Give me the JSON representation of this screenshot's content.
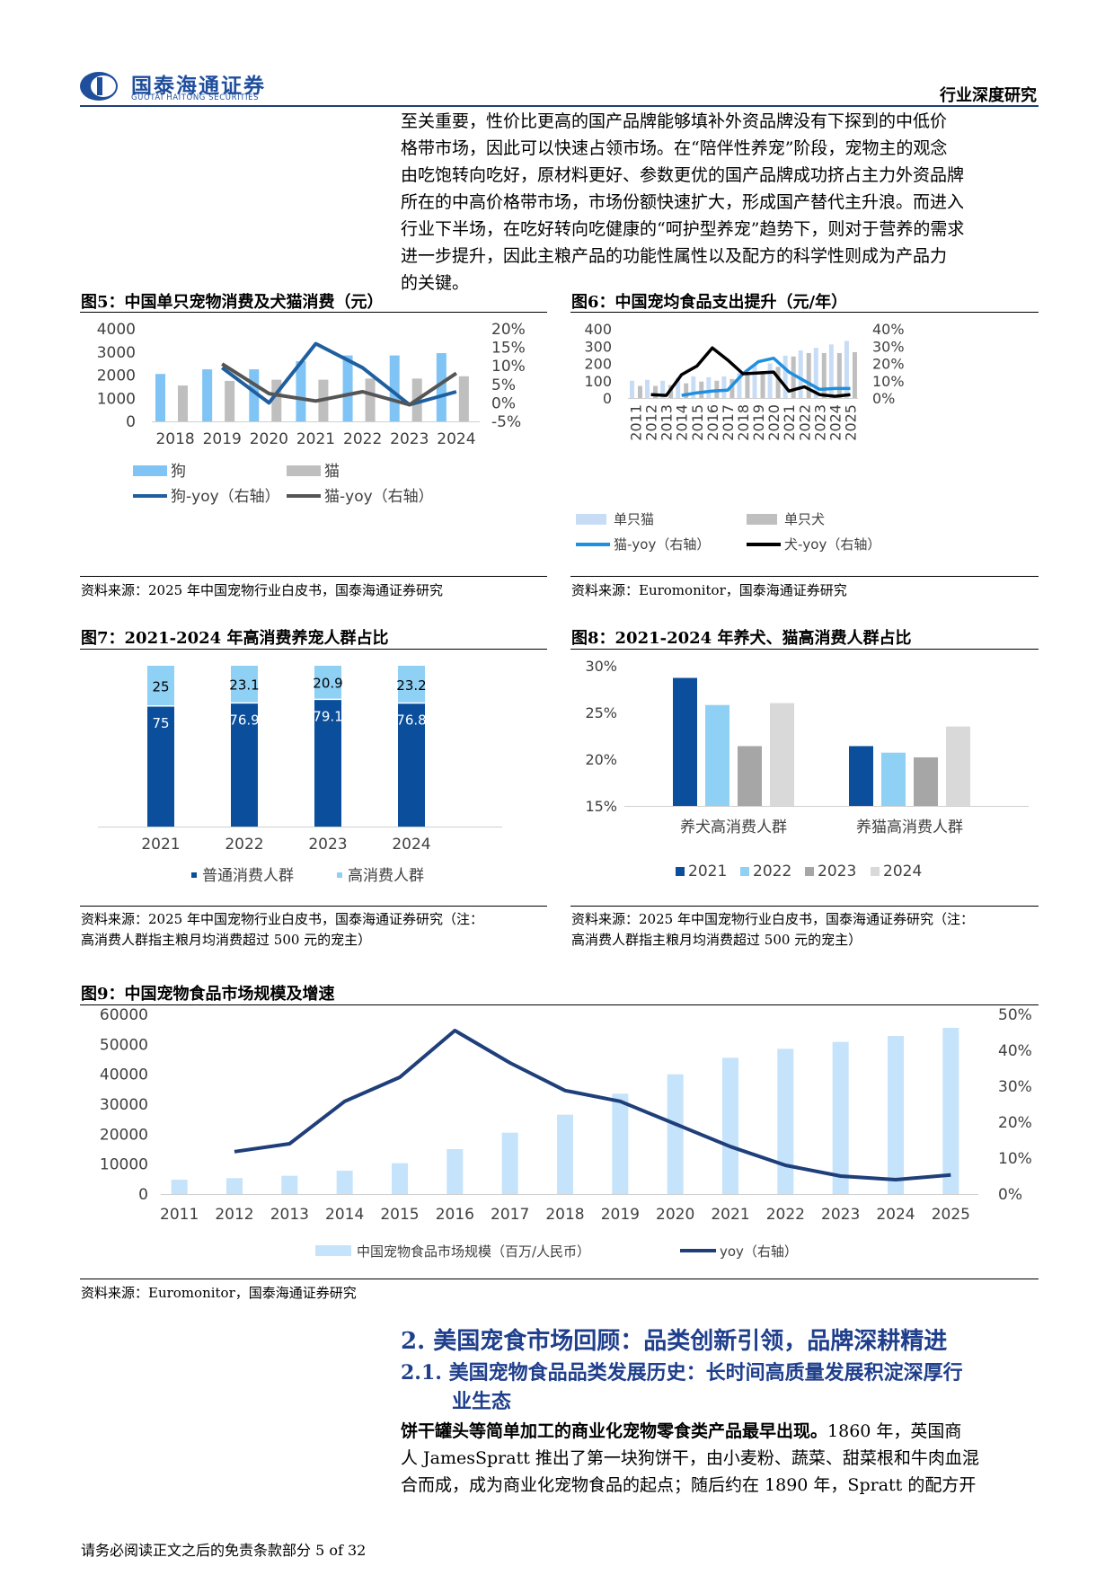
{
  "header": {
    "logo_cn": "国泰海通证券",
    "logo_en": "GUOTAI HAITONG SECURITIES",
    "right": "行业深度研究"
  },
  "intro_lines": [
    "至关重要，性价比更高的国产品牌能够填补外资品牌没有下探到的中低价",
    "格带市场，因此可以快速占领市场。在“陪伴性养宠”阶段，宠物主的观念",
    "由吃饱转向吃好，原材料更好、参数更优的国产品牌成功挤占主力外资品牌",
    "所在的中高价格带市场，市场份额快速扩大，形成国产替代主升浪。而进入",
    "行业下半场，在吃好转向吃健康的“呵护型养宠”趋势下，则对于营养的需求",
    "进一步提升，因此主粮产品的功能性属性以及配方的科学性则成为产品力",
    "的关键。"
  ],
  "figures": {
    "fig5": {
      "title": "图5：中国单只宠物消费及犬猫消费（元）",
      "source": "资料来源：2025 年中国宠物行业白皮书，国泰海通证券研究"
    },
    "fig6": {
      "title": "图6：中国宠均食品支出提升（元/年）",
      "source": "资料来源：Euromonitor，国泰海通证券研究"
    },
    "fig7": {
      "title": "图7：2021-2024 年高消费养宠人群占比",
      "source_line1": "资料来源：2025 年中国宠物行业白皮书，国泰海通证券研究（注：",
      "source_line2": "高消费人群指主粮月均消费超过 500 元的宠主）"
    },
    "fig8": {
      "title": "图8：2021-2024 年养犬、猫高消费人群占比",
      "source_line1": "资料来源：2025 年中国宠物行业白皮书，国泰海通证券研究（注：",
      "source_line2": "高消费人群指主粮月均消费超过 500 元的宠主）"
    },
    "fig9": {
      "title": "图9：中国宠物食品市场规模及增速",
      "source": "资料来源：Euromonitor，国泰海通证券研究"
    }
  },
  "chart_data": [
    {
      "id": "fig5",
      "type": "bar",
      "categories": [
        "2018",
        "2019",
        "2020",
        "2021",
        "2022",
        "2023",
        "2024"
      ],
      "series": [
        {
          "name": "狗",
          "kind": "bar",
          "axis": "left",
          "color": "#7fc4f5",
          "values": [
            2050,
            2250,
            2250,
            2600,
            2850,
            2850,
            2950
          ]
        },
        {
          "name": "猫",
          "kind": "bar",
          "axis": "left",
          "color": "#bfbfbf",
          "values": [
            1550,
            1750,
            1800,
            1800,
            1850,
            1850,
            1950
          ]
        },
        {
          "name": "狗-yoy（右轴）",
          "kind": "line",
          "axis": "right",
          "color": "#1f5f9f",
          "values": [
            null,
            9.5,
            0,
            16,
            9.5,
            -0.5,
            3
          ]
        },
        {
          "name": "猫-yoy（右轴）",
          "kind": "line",
          "axis": "right",
          "color": "#555555",
          "values": [
            null,
            10.5,
            2.5,
            0.5,
            3,
            -0.5,
            8
          ]
        }
      ],
      "y_left": {
        "min": 0,
        "max": 4000,
        "ticks": [
          0,
          1000,
          2000,
          3000,
          4000
        ]
      },
      "y_right": {
        "min": -5,
        "max": 20,
        "ticks": [
          "-5%",
          "0%",
          "5%",
          "10%",
          "15%",
          "20%"
        ]
      },
      "legend": "bottom"
    },
    {
      "id": "fig6",
      "type": "bar",
      "categories": [
        "2011",
        "2012",
        "2013",
        "2014",
        "2015",
        "2016",
        "2017",
        "2018",
        "2019",
        "2020",
        "2021",
        "2022",
        "2023",
        "2024",
        "2025"
      ],
      "series": [
        {
          "name": "单只猫",
          "kind": "bar",
          "axis": "left",
          "color": "#c9dcf5",
          "values": [
            100,
            105,
            100,
            115,
            125,
            120,
            125,
            145,
            195,
            200,
            245,
            275,
            290,
            310,
            330
          ]
        },
        {
          "name": "单只犬",
          "kind": "bar",
          "axis": "left",
          "color": "#bfbfbf",
          "values": [
            70,
            70,
            75,
            85,
            95,
            100,
            110,
            135,
            155,
            180,
            240,
            260,
            260,
            260,
            265
          ]
        },
        {
          "name": "猫-yoy（右轴）",
          "kind": "line",
          "axis": "right",
          "color": "#1f8fdf",
          "values": [
            null,
            null,
            null,
            1.5,
            3,
            4,
            4.5,
            14,
            21,
            23,
            15,
            10,
            5,
            5.5,
            5.5
          ]
        },
        {
          "name": "犬-yoy（右轴）",
          "kind": "line",
          "axis": "right",
          "color": "#000000",
          "values": [
            null,
            2,
            1.5,
            13.5,
            18.5,
            29,
            22,
            14,
            14.5,
            15,
            4,
            6.5,
            2,
            1,
            2
          ]
        }
      ],
      "y_left": {
        "min": 0,
        "max": 400,
        "ticks": [
          0,
          100,
          200,
          300,
          400
        ]
      },
      "y_right": {
        "min": 0,
        "max": 40,
        "ticks": [
          "0%",
          "10%",
          "20%",
          "30%",
          "40%"
        ]
      },
      "legend": "bottom"
    },
    {
      "id": "fig7",
      "type": "bar",
      "stacked": true,
      "categories": [
        "2021",
        "2022",
        "2023",
        "2024"
      ],
      "series": [
        {
          "name": "普通消费人群",
          "color": "#0b4f9c",
          "values": [
            75,
            76.9,
            79.1,
            76.8
          ]
        },
        {
          "name": "高消费人群",
          "color": "#8fd0f5",
          "values": [
            25,
            23.1,
            20.9,
            23.2
          ]
        }
      ],
      "data_labels": {
        "普通消费人群": [
          "75",
          "76.9",
          "79.1",
          "76.8"
        ],
        "高消费人群": [
          "25",
          "23.1",
          "20.9",
          "23.2"
        ]
      },
      "legend": "bottom"
    },
    {
      "id": "fig8",
      "type": "bar",
      "categories": [
        "养犬高消费人群",
        "养猫高消费人群"
      ],
      "series": [
        {
          "name": "2021",
          "color": "#0b4f9c",
          "values": [
            28.7,
            21.4
          ]
        },
        {
          "name": "2022",
          "color": "#8fd0f5",
          "values": [
            25.8,
            20.7
          ]
        },
        {
          "name": "2023",
          "color": "#a6a6a6",
          "values": [
            21.4,
            20.2
          ]
        },
        {
          "name": "2024",
          "color": "#d9d9d9",
          "values": [
            26.0,
            23.5
          ]
        }
      ],
      "y": {
        "min": 15,
        "max": 30,
        "ticks": [
          "15%",
          "20%",
          "25%",
          "30%"
        ]
      },
      "legend": "bottom"
    },
    {
      "id": "fig9",
      "type": "bar",
      "categories": [
        "2011",
        "2012",
        "2013",
        "2014",
        "2015",
        "2016",
        "2017",
        "2018",
        "2019",
        "2020",
        "2021",
        "2022",
        "2023",
        "2024",
        "2025"
      ],
      "series": [
        {
          "name": "中国宠物食品市场规模（百万/人民币）",
          "kind": "bar",
          "axis": "left",
          "color": "#c5e3fa",
          "values": [
            4800,
            5300,
            6100,
            7800,
            10300,
            15000,
            20500,
            26500,
            33500,
            40000,
            45500,
            48500,
            50800,
            52800,
            55500
          ]
        },
        {
          "name": "yoy（右轴）",
          "kind": "line",
          "axis": "right",
          "color": "#1f3f7a",
          "values": [
            null,
            11.8,
            14,
            25.8,
            32.5,
            45.5,
            36.5,
            28.8,
            25.8,
            19.5,
            13.2,
            8,
            5,
            4,
            5.3
          ]
        }
      ],
      "y_left": {
        "min": 0,
        "max": 60000,
        "ticks": [
          0,
          10000,
          20000,
          30000,
          40000,
          50000,
          60000
        ]
      },
      "y_right": {
        "min": 0,
        "max": 50,
        "ticks": [
          "0%",
          "10%",
          "20%",
          "30%",
          "40%",
          "50%"
        ]
      },
      "legend": "bottom"
    }
  ],
  "section2": {
    "title": "2.  美国宠食市场回顾：品类创新引领，品牌深耕精进",
    "sub_line1": "2.1.  美国宠物食品品类发展历史：长时间高质量发展积淀深厚行",
    "sub_line2": "业生态",
    "para_bold": "饼干罐头等简单加工的商业化宠物零食类产品最早出现。",
    "para_rest1": "1860 年，英国商",
    "para_line2": "人 JamesSpratt 推出了第一块狗饼干，由小麦粉、蔬菜、甜菜根和牛肉血混",
    "para_line3": "合而成，成为商业化宠物食品的起点；随后约在 1890 年，Spratt 的配方开"
  },
  "footer": {
    "text": "请务必阅读正文之后的免责条款部分 5 of 32"
  }
}
